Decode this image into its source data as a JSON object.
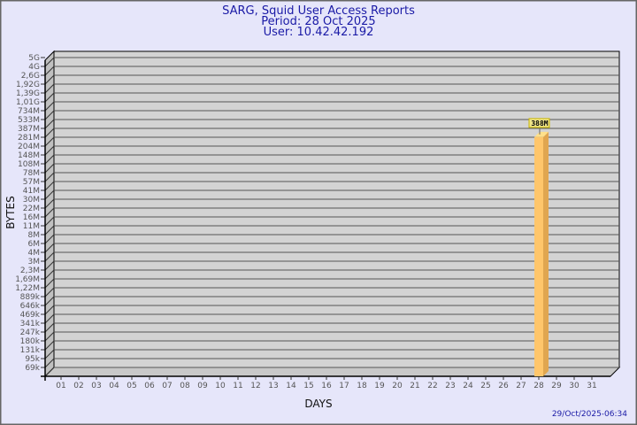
{
  "chart_data": {
    "type": "bar",
    "title": "SARG, Squid User Access Reports",
    "subtitle_lines": [
      "Period: 28 Oct 2025",
      "User: 10.42.42.192"
    ],
    "xlabel": "DAYS",
    "ylabel": "BYTES",
    "y_scale": "log",
    "y_tick_labels": [
      "5G",
      "4G",
      "2,6G",
      "1,92G",
      "1,39G",
      "1,01G",
      "734M",
      "533M",
      "387M",
      "281M",
      "204M",
      "148M",
      "108M",
      "78M",
      "57M",
      "41M",
      "30M",
      "22M",
      "16M",
      "11M",
      "8M",
      "6M",
      "4M",
      "3M",
      "2,3M",
      "1,69M",
      "1,22M",
      "889k",
      "646k",
      "469k",
      "341k",
      "247k",
      "180k",
      "131k",
      "95k",
      "69k"
    ],
    "categories": [
      "01",
      "02",
      "03",
      "04",
      "05",
      "06",
      "07",
      "08",
      "09",
      "10",
      "11",
      "12",
      "13",
      "14",
      "15",
      "16",
      "17",
      "18",
      "19",
      "20",
      "21",
      "22",
      "23",
      "24",
      "25",
      "26",
      "27",
      "28",
      "29",
      "30",
      "31"
    ],
    "bars": [
      {
        "category": "28",
        "value_label": "388M",
        "value_bytes": 388000000
      }
    ],
    "grid": true,
    "bar_color": "#ffc66b",
    "bar_side_color": "#e0a650"
  },
  "footer": {
    "timestamp": "29/Oct/2025-06:34"
  }
}
